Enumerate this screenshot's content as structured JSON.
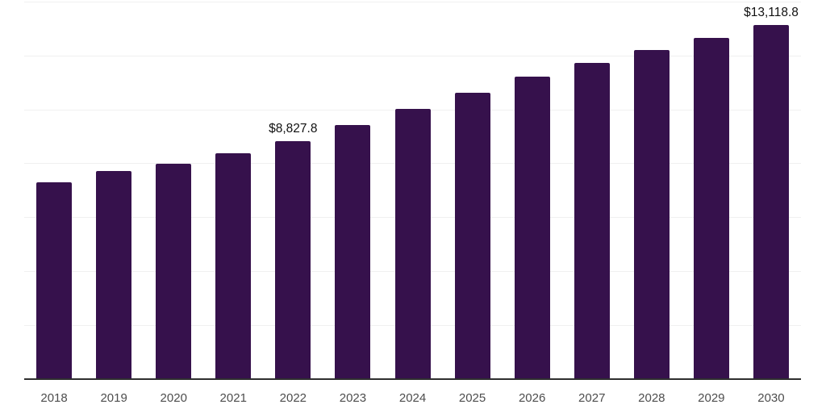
{
  "chart_data": {
    "type": "bar",
    "title": "",
    "xlabel": "",
    "ylabel": "",
    "categories": [
      "2018",
      "2019",
      "2020",
      "2021",
      "2022",
      "2023",
      "2024",
      "2025",
      "2026",
      "2027",
      "2028",
      "2029",
      "2030"
    ],
    "values": [
      7280,
      7700,
      7990,
      8370,
      8827.8,
      9420,
      10030,
      10610,
      11210,
      11715,
      12205,
      12645,
      13118.8
    ],
    "data_labels": {
      "2022": "$8,827.8",
      "2030": "$13,118.8"
    },
    "ylim": [
      0,
      14000
    ],
    "gridline_step": 2000,
    "grid": "horizontal",
    "legend_position": "none",
    "y_axis_tick_labels_visible": false,
    "colors": {
      "bar": "#36114C",
      "axis_line": "#2F2F2F",
      "gridline": "#F0F0F0",
      "tick_label": "#4D4D4D",
      "data_label": "#111111",
      "background": "#FFFFFF"
    }
  }
}
